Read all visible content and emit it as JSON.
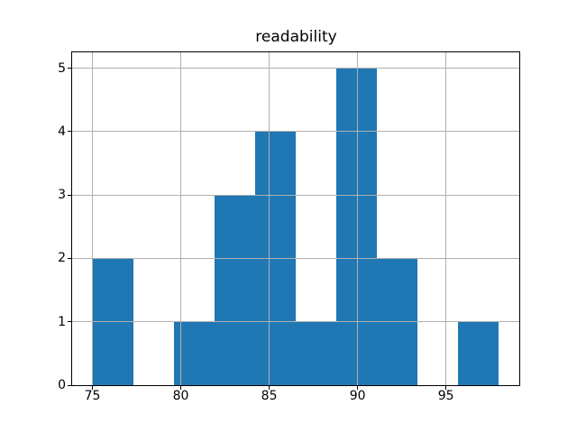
{
  "chart_data": {
    "type": "bar",
    "subtype": "histogram",
    "title": "readability",
    "xlabel": "",
    "ylabel": "",
    "bin_edges": [
      75.0,
      77.3,
      79.6,
      81.9,
      84.2,
      86.5,
      88.8,
      91.1,
      93.4,
      95.7,
      98.0
    ],
    "counts": [
      2,
      0,
      1,
      3,
      4,
      1,
      5,
      2,
      0,
      1
    ],
    "x_ticks": [
      75,
      80,
      85,
      90,
      95
    ],
    "y_ticks": [
      0,
      1,
      2,
      3,
      4,
      5
    ],
    "xlim": [
      73.85,
      99.15
    ],
    "ylim": [
      0,
      5.25
    ],
    "grid": true,
    "legend": null
  },
  "colors": {
    "bar": "#1f77b4",
    "grid": "#b0b0b0",
    "spine": "#000000",
    "text": "#000000",
    "background": "#ffffff"
  }
}
